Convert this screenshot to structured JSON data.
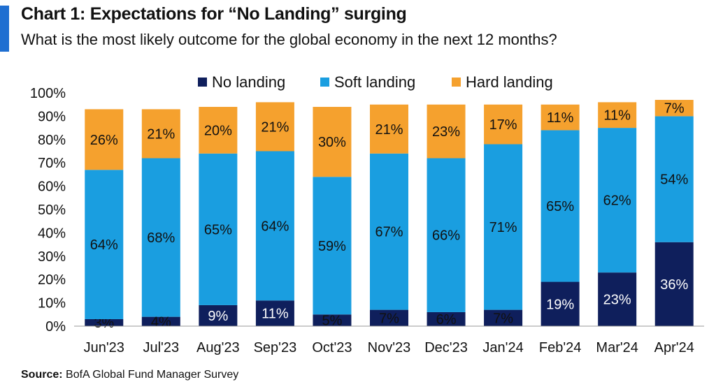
{
  "header": {
    "title": "Chart 1: Expectations for “No Landing” surging",
    "subtitle": "What is the most likely outcome for the global economy in the next 12 months?"
  },
  "footer": {
    "source_label": "Source:",
    "source_text": "BofA Global Fund Manager Survey"
  },
  "colors": {
    "accent": "#1f6fd1",
    "no_landing": "#0f1f5c",
    "soft_landing": "#1a9ee0",
    "hard_landing": "#f5a12e"
  },
  "chart_data": {
    "type": "bar",
    "stacked": true,
    "title": "Chart 1: Expectations for “No Landing” surging",
    "subtitle": "What is the most likely outcome for the global economy in the next 12 months?",
    "categories": [
      "Jun'23",
      "Jul'23",
      "Aug'23",
      "Sep'23",
      "Oct'23",
      "Nov'23",
      "Dec'23",
      "Jan'24",
      "Feb'24",
      "Mar'24",
      "Apr'24"
    ],
    "series": [
      {
        "name": "No landing",
        "color": "#0f1f5c",
        "values": [
          3,
          4,
          9,
          11,
          5,
          7,
          6,
          7,
          19,
          23,
          36
        ]
      },
      {
        "name": "Soft landing",
        "color": "#1a9ee0",
        "values": [
          64,
          68,
          65,
          64,
          59,
          67,
          66,
          71,
          65,
          62,
          54
        ]
      },
      {
        "name": "Hard landing",
        "color": "#f5a12e",
        "values": [
          26,
          21,
          20,
          21,
          30,
          21,
          23,
          17,
          11,
          11,
          7
        ]
      }
    ],
    "ylim": [
      0,
      100
    ],
    "yticks": [
      "0%",
      "10%",
      "20%",
      "30%",
      "40%",
      "50%",
      "60%",
      "70%",
      "80%",
      "90%",
      "100%"
    ],
    "legend_position": "top-center",
    "grid": false
  }
}
